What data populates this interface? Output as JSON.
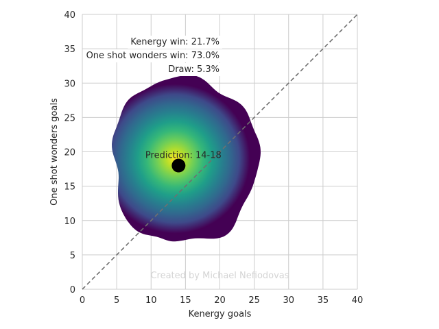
{
  "chart_data": {
    "type": "heatmap",
    "title": "",
    "xlabel": "Kenergy goals",
    "ylabel": "One shot wonders goals",
    "xlim": [
      0,
      40
    ],
    "ylim": [
      0,
      40
    ],
    "xticks": [
      0,
      5,
      10,
      15,
      20,
      25,
      30,
      35,
      40
    ],
    "yticks": [
      0,
      5,
      10,
      15,
      20,
      25,
      30,
      35,
      40
    ],
    "grid": true,
    "colormap": "viridis",
    "density_peak": {
      "x": 13.5,
      "y": 19
    },
    "density_extent": {
      "x": [
        4.6,
        25.5
      ],
      "y": [
        6.9,
        30.6
      ]
    },
    "diagonal_line": {
      "x": [
        0,
        40
      ],
      "y": [
        0,
        40
      ],
      "style": "dashed",
      "color": "#707070"
    },
    "prediction_point": {
      "x": 14,
      "y": 18,
      "color": "#000000"
    },
    "prediction_label": "Prediction: 14-18",
    "outcomes": [
      "Kenergy win: 21.7%",
      "One shot wonders win: 73.0%",
      "Draw: 5.3%"
    ],
    "watermark": "Created by Michael Nefiodovas"
  }
}
